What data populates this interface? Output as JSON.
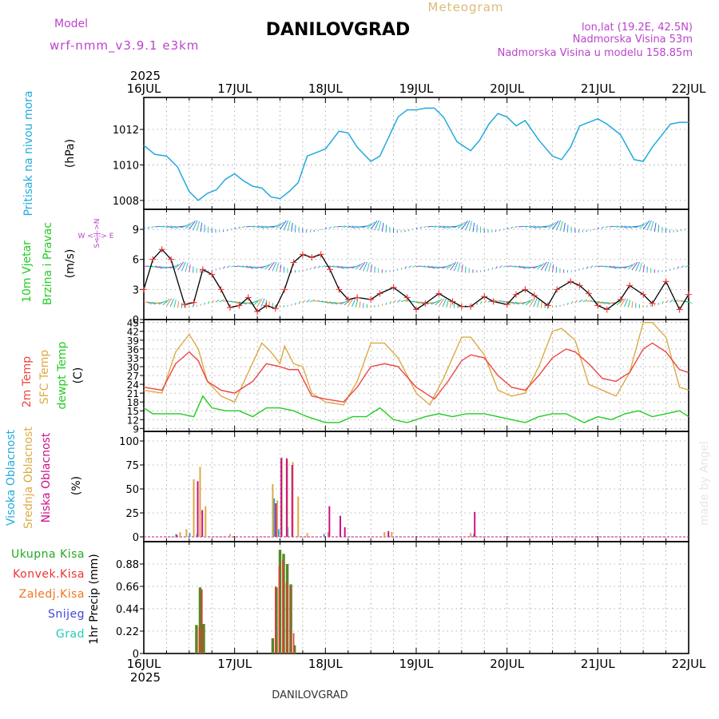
{
  "header": {
    "model_label": "Model",
    "model_name": "wrf-nmm_v3.9.1  e3km",
    "station": "DANILOVGRAD",
    "product": "Meteogram",
    "lonlat": "lon,lat (19.2E, 42.5N)",
    "elevation": "Nadmorska Visina 53m",
    "model_elevation": "Nadmorska Visina u modelu 158.85m"
  },
  "footer": {
    "station": "DANILOVGRAD",
    "watermark": "made by Angel"
  },
  "colors": {
    "pressure": "#22aadd",
    "wind_black": "#000000",
    "wind_red": "#ee3333",
    "t2m": "#ee4444",
    "tsfc": "#ddaa44",
    "dewpt": "#22cc22",
    "cloud_high": "#22aadd",
    "cloud_mid": "#ddaa44",
    "cloud_low": "#cc1188",
    "precip_total": "#22aa22",
    "precip_conv": "#ee3333",
    "precip_frz": "#ee7722",
    "snow": "#4444dd",
    "graupel": "#22ccbb",
    "model": "#bb44cc",
    "product": "#ddbb77"
  },
  "chart_data": [
    {
      "type": "line",
      "panel": "pressure",
      "ylabel_lines": [
        "Pritisak na nivou mora",
        "(hPa)"
      ],
      "ylim": [
        1007.5,
        1013.8
      ],
      "yticks": [
        "1008",
        "1010",
        "1012"
      ],
      "x_labels": [
        "16JUL",
        "17JUL",
        "18JUL",
        "19JUL",
        "20JUL",
        "21JUL",
        "22JUL"
      ],
      "year": "2025",
      "x_units": "days since 16JUL 00UTC",
      "series": [
        {
          "name": "MSLP",
          "x": [
            0,
            0.12,
            0.25,
            0.37,
            0.5,
            0.6,
            0.7,
            0.8,
            0.9,
            1.0,
            1.1,
            1.2,
            1.3,
            1.4,
            1.5,
            1.6,
            1.7,
            1.8,
            1.9,
            2.0,
            2.15,
            2.25,
            2.35,
            2.5,
            2.6,
            2.7,
            2.8,
            2.9,
            3.0,
            3.1,
            3.2,
            3.3,
            3.45,
            3.6,
            3.7,
            3.8,
            3.9,
            4.0,
            4.1,
            4.2,
            4.35,
            4.5,
            4.6,
            4.7,
            4.8,
            5.0,
            5.1,
            5.25,
            5.4,
            5.5,
            5.6,
            5.8,
            5.9,
            6.0
          ],
          "values": [
            1011.1,
            1010.6,
            1010.5,
            1009.9,
            1008.5,
            1008.0,
            1008.4,
            1008.6,
            1009.2,
            1009.5,
            1009.1,
            1008.8,
            1008.7,
            1008.2,
            1008.1,
            1008.5,
            1009.0,
            1010.5,
            1010.7,
            1010.9,
            1011.9,
            1011.8,
            1011.0,
            1010.2,
            1010.5,
            1011.6,
            1012.7,
            1013.1,
            1013.1,
            1013.2,
            1013.2,
            1012.7,
            1011.3,
            1010.8,
            1011.4,
            1012.3,
            1012.9,
            1012.7,
            1012.2,
            1012.5,
            1011.4,
            1010.5,
            1010.3,
            1011.0,
            1012.2,
            1012.6,
            1012.3,
            1011.7,
            1010.3,
            1010.2,
            1011.0,
            1012.3,
            1012.4,
            1012.4
          ]
        }
      ]
    },
    {
      "type": "line",
      "panel": "wind",
      "ylabel_lines": [
        "10m Vjetar",
        "Brzina i Pravac",
        "(m/s)"
      ],
      "compass_label": "W <-|-> E",
      "compass_vertical": "S<-|->N",
      "ylim": [
        0,
        11
      ],
      "yticks": [
        "0",
        "3",
        "6",
        "9"
      ],
      "series": [
        {
          "name": "10m wind speed",
          "x": [
            0,
            0.1,
            0.2,
            0.3,
            0.45,
            0.55,
            0.65,
            0.75,
            0.85,
            0.95,
            1.05,
            1.15,
            1.25,
            1.35,
            1.45,
            1.55,
            1.65,
            1.75,
            1.85,
            1.95,
            2.05,
            2.15,
            2.25,
            2.35,
            2.5,
            2.6,
            2.75,
            2.9,
            3.0,
            3.1,
            3.25,
            3.4,
            3.5,
            3.6,
            3.75,
            3.85,
            4.0,
            4.1,
            4.2,
            4.3,
            4.45,
            4.55,
            4.7,
            4.8,
            4.9,
            5.0,
            5.1,
            5.25,
            5.35,
            5.5,
            5.6,
            5.75,
            5.9,
            6.0
          ],
          "values": [
            3.0,
            6.0,
            7.0,
            6.0,
            1.5,
            1.7,
            5.0,
            4.5,
            3.0,
            1.2,
            1.4,
            2.2,
            0.8,
            1.4,
            1.1,
            3.0,
            5.7,
            6.5,
            6.2,
            6.5,
            5.0,
            3.0,
            2.0,
            2.2,
            2.0,
            2.6,
            3.2,
            2.2,
            1.0,
            1.6,
            2.6,
            1.8,
            1.3,
            1.3,
            2.3,
            1.8,
            1.5,
            2.5,
            3.0,
            2.4,
            1.4,
            3.0,
            3.8,
            3.4,
            2.6,
            1.4,
            1.0,
            2.0,
            3.4,
            2.5,
            1.6,
            3.8,
            1.0,
            2.5
          ]
        }
      ]
    },
    {
      "type": "line",
      "panel": "temperature",
      "ylabel_lines": [
        "2m Temp",
        "SFC Temp",
        "dewpt Temp",
        "(C)"
      ],
      "ylim": [
        8,
        46
      ],
      "yticks": [
        "9",
        "12",
        "15",
        "18",
        "21",
        "24",
        "27",
        "30",
        "33",
        "36",
        "39",
        "42",
        "45"
      ],
      "series": [
        {
          "name": "2m Temp",
          "x": [
            0,
            0.2,
            0.35,
            0.5,
            0.6,
            0.7,
            0.85,
            1.0,
            1.2,
            1.35,
            1.5,
            1.6,
            1.7,
            1.85,
            2.0,
            2.2,
            2.35,
            2.5,
            2.65,
            2.8,
            3.0,
            3.2,
            3.35,
            3.5,
            3.6,
            3.75,
            3.9,
            4.05,
            4.2,
            4.35,
            4.5,
            4.65,
            4.75,
            4.9,
            5.05,
            5.2,
            5.35,
            5.5,
            5.6,
            5.75,
            5.9,
            6.0
          ],
          "values": [
            23,
            22,
            31,
            35,
            32,
            25,
            22,
            21,
            25,
            31,
            30,
            29,
            29,
            20,
            19,
            18,
            23,
            30,
            31,
            30,
            23,
            19,
            25,
            32,
            34,
            33,
            27,
            23,
            22,
            27,
            33,
            36,
            35,
            31,
            26,
            25,
            28,
            36,
            38,
            35,
            29,
            28
          ]
        },
        {
          "name": "SFC Temp",
          "x": [
            0,
            0.2,
            0.35,
            0.5,
            0.6,
            0.7,
            0.85,
            1.0,
            1.15,
            1.3,
            1.4,
            1.5,
            1.55,
            1.65,
            1.75,
            1.85,
            2.0,
            2.2,
            2.35,
            2.5,
            2.65,
            2.8,
            3.0,
            3.15,
            3.3,
            3.5,
            3.6,
            3.75,
            3.9,
            4.05,
            4.2,
            4.35,
            4.5,
            4.6,
            4.75,
            4.9,
            5.05,
            5.2,
            5.35,
            5.5,
            5.6,
            5.75,
            5.9,
            6.0
          ],
          "values": [
            22,
            21,
            35,
            41,
            36,
            25,
            20,
            18,
            28,
            38,
            35,
            31,
            37,
            31,
            30,
            21,
            18,
            17,
            25,
            38,
            38,
            33,
            21,
            17,
            26,
            40,
            40,
            34,
            22,
            20,
            21,
            30,
            42,
            43,
            39,
            24,
            22,
            20,
            28,
            45,
            45,
            40,
            23,
            22
          ]
        },
        {
          "name": "dewpt Temp",
          "x": [
            0,
            0.1,
            0.25,
            0.4,
            0.55,
            0.65,
            0.75,
            0.9,
            1.05,
            1.2,
            1.35,
            1.5,
            1.65,
            1.8,
            2.0,
            2.15,
            2.3,
            2.45,
            2.6,
            2.75,
            2.9,
            3.1,
            3.25,
            3.4,
            3.55,
            3.75,
            3.9,
            4.05,
            4.2,
            4.35,
            4.5,
            4.65,
            4.85,
            5.0,
            5.15,
            5.3,
            5.45,
            5.6,
            5.75,
            5.9,
            6.0
          ],
          "values": [
            16,
            14,
            14,
            14,
            13,
            20,
            16,
            15,
            15,
            13,
            16,
            16,
            15,
            13,
            11,
            11,
            13,
            13,
            16,
            12,
            11,
            13,
            14,
            13,
            14,
            14,
            13,
            12,
            11,
            13,
            14,
            14,
            11,
            13,
            12,
            14,
            15,
            13,
            14,
            15,
            13
          ]
        }
      ]
    },
    {
      "type": "bar",
      "panel": "cloud",
      "ylabel_lines": [
        "Visoka Oblacnost",
        "Srednja Oblacnost",
        "Niska Oblacnost",
        "(%)"
      ],
      "ylim": [
        -5,
        110
      ],
      "yticks": [
        "0",
        "25",
        "50",
        "75",
        "100"
      ],
      "series": [
        {
          "name": "Visoka Oblacnost",
          "x": [
            0.37,
            0.52,
            0.6,
            1.45,
            1.5,
            1.6,
            2.0,
            2.05,
            3.65
          ],
          "values": [
            3,
            4,
            3,
            40,
            8,
            10,
            3,
            3,
            3
          ]
        },
        {
          "name": "Srednja Oblacnost",
          "x": [
            0.4,
            0.47,
            0.55,
            0.62,
            0.68,
            0.95,
            1.42,
            1.47,
            1.52,
            1.58,
            1.64,
            1.7,
            1.8,
            2.03,
            2.65,
            2.73,
            3.6
          ],
          "values": [
            5,
            8,
            60,
            73,
            32,
            3,
            55,
            38,
            83,
            80,
            78,
            42,
            4,
            5,
            5,
            5,
            4
          ]
        },
        {
          "name": "Niska Oblacnost",
          "x": [
            0.35,
            0.58,
            0.63,
            1.44,
            1.5,
            1.56,
            1.62,
            2.03,
            2.15,
            2.2,
            2.68,
            3.63
          ],
          "values": [
            2,
            58,
            28,
            35,
            82,
            82,
            75,
            32,
            22,
            10,
            6,
            26
          ]
        }
      ]
    },
    {
      "type": "bar",
      "panel": "precip",
      "ylabel_lines": [
        "1hr Precip (mm)"
      ],
      "legend": [
        "Ukupna Kisa",
        "Konvek.Kisa",
        "Zaledj.Kisa",
        "Snijeg",
        "Grad"
      ],
      "ylim": [
        0,
        1.1
      ],
      "yticks": [
        "0",
        "0.22",
        "0.44",
        "0.66",
        "0.88"
      ],
      "series": [
        {
          "name": "Ukupna Kisa",
          "x": [
            0.58,
            0.62,
            0.66,
            1.42,
            1.46,
            1.5,
            1.54,
            1.58,
            1.62,
            1.66
          ],
          "values": [
            0.28,
            0.65,
            0.29,
            0.15,
            0.65,
            1.02,
            0.98,
            0.88,
            0.68,
            0.08
          ]
        },
        {
          "name": "Konvek.Kisa",
          "x": [
            0.6,
            0.63,
            1.44,
            1.48,
            1.52,
            1.56,
            1.6,
            1.64
          ],
          "values": [
            0.26,
            0.63,
            0.66,
            0.86,
            0.92,
            0.7,
            0.66,
            0.2
          ]
        }
      ]
    }
  ]
}
